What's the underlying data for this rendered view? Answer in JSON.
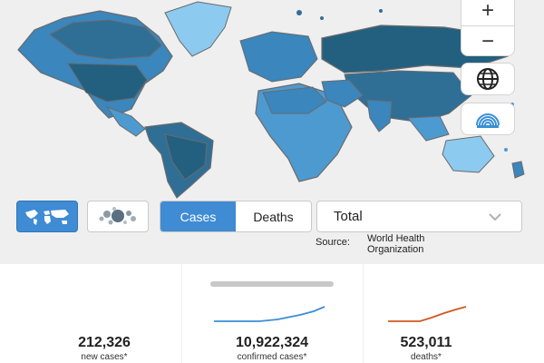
{
  "map": {
    "zoom_in_label": "+",
    "zoom_out_label": "−",
    "ocean_color": "#efefef",
    "fill_colors": [
      "#2f6f96",
      "#3a86bd",
      "#4d9ad0",
      "#8ccaf0",
      "#236080"
    ]
  },
  "controls": {
    "view_map_icon": "world-map-icon",
    "view_bubble_icon": "bubble-cluster-icon",
    "globe_icon": "globe-icon",
    "signal_icon": "signal-arcs-icon",
    "metric_tabs": [
      {
        "label": "Cases",
        "active": true
      },
      {
        "label": "Deaths",
        "active": false
      }
    ],
    "period_select": {
      "value": "Total"
    },
    "accent_color": "#3f8bd4"
  },
  "source": {
    "label": "Source:",
    "value": "World Health Organization"
  },
  "stats": [
    {
      "value": "212,326",
      "label": "new cases*"
    },
    {
      "value": "10,922,324",
      "label": "confirmed cases*",
      "sparkline_color": "#3a8fd6"
    },
    {
      "value": "523,011",
      "label": "deaths*",
      "sparkline_color": "#d0581f"
    }
  ]
}
